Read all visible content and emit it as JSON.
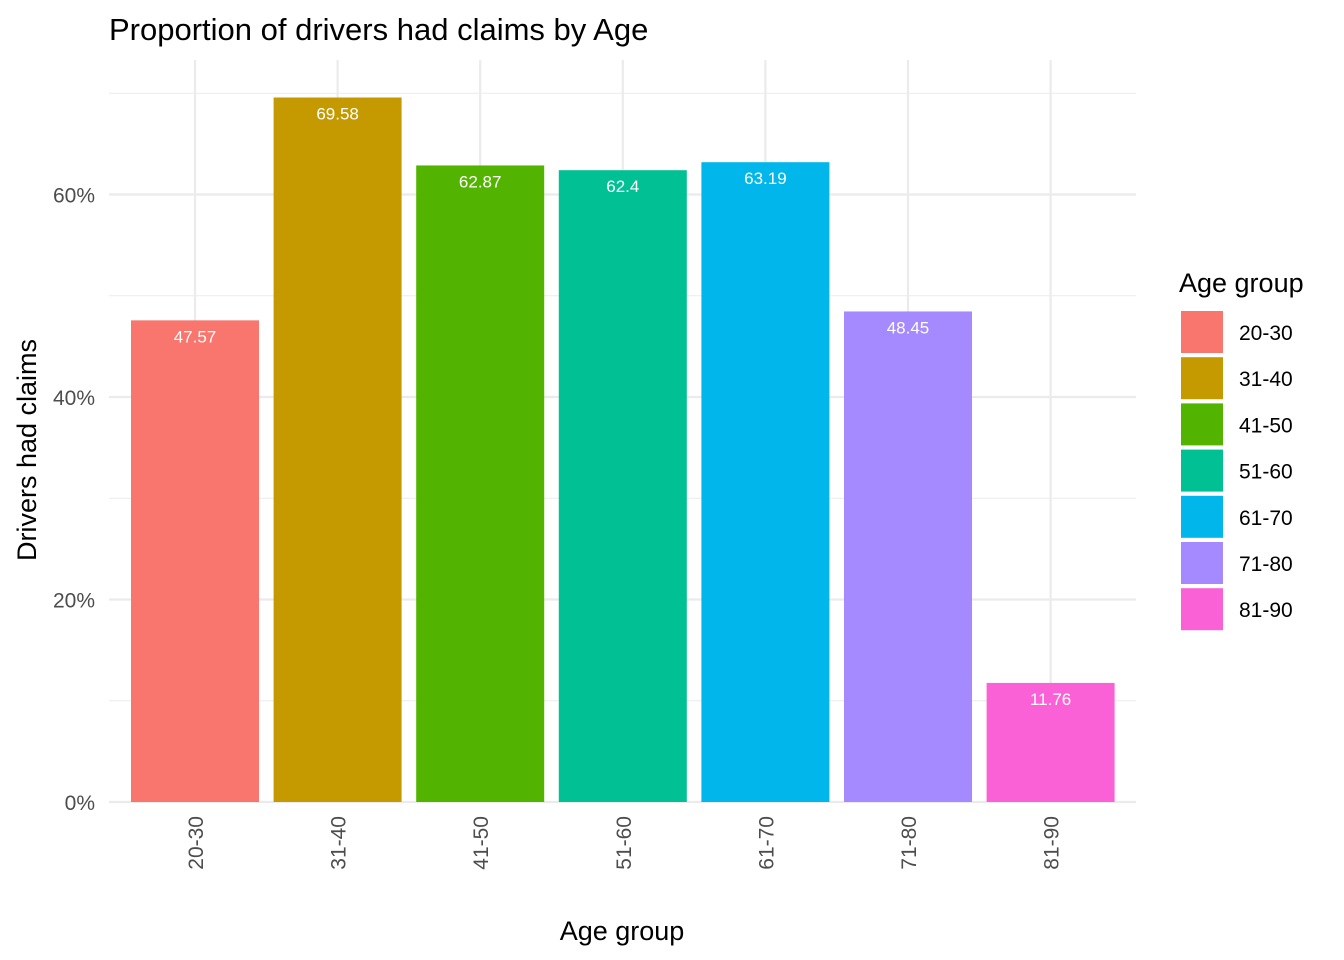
{
  "chart_data": {
    "type": "bar",
    "title": "Proportion of drivers had claims by Age",
    "xlabel": "Age group",
    "ylabel": "Drivers had claims",
    "categories": [
      "20-30",
      "31-40",
      "41-50",
      "51-60",
      "61-70",
      "71-80",
      "81-90"
    ],
    "values": [
      47.57,
      69.58,
      62.87,
      62.4,
      63.19,
      48.45,
      11.76
    ],
    "data_labels": [
      "47.57",
      "69.58",
      "62.87",
      "62.4",
      "63.19",
      "48.45",
      "11.76"
    ],
    "colors": [
      "#F8766D",
      "#C49A00",
      "#53B400",
      "#00C094",
      "#00B6EB",
      "#A58AFF",
      "#FB61D7"
    ],
    "ylim": [
      0,
      72
    ],
    "y_ticks": [
      0,
      20,
      40,
      60
    ],
    "y_tick_labels": [
      "0%",
      "20%",
      "40%",
      "60%"
    ],
    "y_minor_ticks": [
      10,
      30,
      50,
      70
    ],
    "grid": true,
    "legend": {
      "title": "Age group",
      "position": "right",
      "entries": [
        "20-30",
        "31-40",
        "41-50",
        "51-60",
        "61-70",
        "71-80",
        "81-90"
      ]
    },
    "x_tick_rotation": "vertical"
  }
}
